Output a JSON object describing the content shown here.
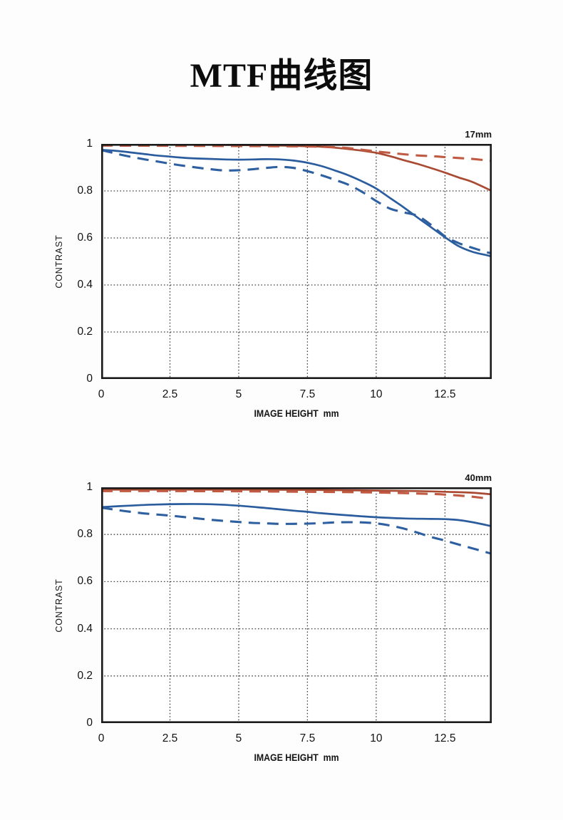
{
  "page": {
    "title": "MTF曲线图"
  },
  "chart_data": [
    {
      "type": "line",
      "corner_label": "17mm",
      "xlabel": "IMAGE HEIGHT  mm",
      "ylabel": "CONTRAST",
      "xlim": [
        0,
        14.2
      ],
      "ylim": [
        0,
        1
      ],
      "x_ticks": [
        0,
        2.5,
        5,
        7.5,
        10,
        12.5
      ],
      "x_tick_labels": [
        "0",
        "2.5",
        "5",
        "7.5",
        "10",
        "12.5"
      ],
      "y_ticks": [
        0,
        0.2,
        0.4,
        0.6,
        0.8,
        1
      ],
      "y_tick_labels": [
        "0",
        "0.2",
        "0.4",
        "0.6",
        "0.8",
        "1"
      ],
      "grid": "dotted",
      "legend": "none",
      "series": [
        {
          "name": "red-solid",
          "style": "solid",
          "color": "#a94a33",
          "points": [
            [
              0,
              0.998
            ],
            [
              1,
              0.998
            ],
            [
              2.5,
              0.997
            ],
            [
              4,
              0.996
            ],
            [
              5,
              0.995
            ],
            [
              6,
              0.994
            ],
            [
              7,
              0.992
            ],
            [
              7.5,
              0.99
            ],
            [
              8,
              0.988
            ],
            [
              8.5,
              0.984
            ],
            [
              9,
              0.978
            ],
            [
              9.5,
              0.971
            ],
            [
              10,
              0.962
            ],
            [
              10.5,
              0.948
            ],
            [
              11,
              0.931
            ],
            [
              11.5,
              0.915
            ],
            [
              12,
              0.897
            ],
            [
              12.5,
              0.878
            ],
            [
              13,
              0.857
            ],
            [
              13.5,
              0.838
            ],
            [
              14.2,
              0.8
            ]
          ]
        },
        {
          "name": "red-dashed",
          "style": "dashed",
          "color": "#c05a42",
          "points": [
            [
              0,
              0.993
            ],
            [
              2.5,
              0.992
            ],
            [
              5,
              0.991
            ],
            [
              7.5,
              0.989
            ],
            [
              8.5,
              0.986
            ],
            [
              9,
              0.982
            ],
            [
              9.5,
              0.975
            ],
            [
              10,
              0.968
            ],
            [
              10.5,
              0.962
            ],
            [
              11,
              0.956
            ],
            [
              11.5,
              0.951
            ],
            [
              12,
              0.948
            ],
            [
              12.5,
              0.944
            ],
            [
              13,
              0.94
            ],
            [
              13.5,
              0.936
            ],
            [
              14.2,
              0.928
            ]
          ]
        },
        {
          "name": "blue-solid",
          "style": "solid",
          "color": "#2b5d9e",
          "points": [
            [
              0,
              0.975
            ],
            [
              0.5,
              0.971
            ],
            [
              1,
              0.965
            ],
            [
              1.5,
              0.958
            ],
            [
              2,
              0.951
            ],
            [
              2.5,
              0.946
            ],
            [
              3,
              0.941
            ],
            [
              3.5,
              0.938
            ],
            [
              4,
              0.936
            ],
            [
              4.5,
              0.934
            ],
            [
              5,
              0.933
            ],
            [
              5.5,
              0.934
            ],
            [
              6,
              0.935
            ],
            [
              6.5,
              0.934
            ],
            [
              7,
              0.929
            ],
            [
              7.5,
              0.92
            ],
            [
              8,
              0.906
            ],
            [
              8.5,
              0.887
            ],
            [
              9,
              0.866
            ],
            [
              9.5,
              0.84
            ],
            [
              10,
              0.81
            ],
            [
              10.5,
              0.77
            ],
            [
              11,
              0.73
            ],
            [
              11.5,
              0.687
            ],
            [
              12,
              0.645
            ],
            [
              12.5,
              0.603
            ],
            [
              13,
              0.565
            ],
            [
              13.5,
              0.541
            ],
            [
              14,
              0.527
            ],
            [
              14.2,
              0.521
            ]
          ]
        },
        {
          "name": "blue-dashed",
          "style": "dashed",
          "color": "#2e60a1",
          "points": [
            [
              0,
              0.974
            ],
            [
              0.5,
              0.96
            ],
            [
              1,
              0.947
            ],
            [
              1.5,
              0.936
            ],
            [
              2,
              0.926
            ],
            [
              2.5,
              0.916
            ],
            [
              3,
              0.907
            ],
            [
              3.5,
              0.899
            ],
            [
              4,
              0.892
            ],
            [
              4.5,
              0.887
            ],
            [
              5,
              0.888
            ],
            [
              5.5,
              0.892
            ],
            [
              6,
              0.898
            ],
            [
              6.5,
              0.902
            ],
            [
              7,
              0.898
            ],
            [
              7.5,
              0.884
            ],
            [
              8,
              0.867
            ],
            [
              8.5,
              0.847
            ],
            [
              9,
              0.826
            ],
            [
              9.5,
              0.795
            ],
            [
              10,
              0.757
            ],
            [
              10.5,
              0.725
            ],
            [
              11,
              0.709
            ],
            [
              11.5,
              0.694
            ],
            [
              12,
              0.655
            ],
            [
              12.5,
              0.607
            ],
            [
              13,
              0.578
            ],
            [
              13.5,
              0.558
            ],
            [
              14,
              0.54
            ],
            [
              14.2,
              0.535
            ]
          ]
        }
      ]
    },
    {
      "type": "line",
      "corner_label": "40mm",
      "xlabel": "IMAGE HEIGHT  mm",
      "ylabel": "CONTRAST",
      "xlim": [
        0,
        14.2
      ],
      "ylim": [
        0,
        1
      ],
      "x_ticks": [
        0,
        2.5,
        5,
        7.5,
        10,
        12.5
      ],
      "x_tick_labels": [
        "0",
        "2.5",
        "5",
        "7.5",
        "10",
        "12.5"
      ],
      "y_ticks": [
        0,
        0.2,
        0.4,
        0.6,
        0.8,
        1
      ],
      "y_tick_labels": [
        "0",
        "0.2",
        "0.4",
        "0.6",
        "0.8",
        "1"
      ],
      "grid": "dotted",
      "legend": "none",
      "series": [
        {
          "name": "red-solid",
          "style": "solid",
          "color": "#a94a33",
          "points": [
            [
              0,
              0.99
            ],
            [
              2.5,
              0.99
            ],
            [
              5,
              0.99
            ],
            [
              7.5,
              0.989
            ],
            [
              10,
              0.986
            ],
            [
              11.5,
              0.984
            ],
            [
              12.5,
              0.981
            ],
            [
              13.5,
              0.977
            ],
            [
              14.2,
              0.97
            ]
          ]
        },
        {
          "name": "red-dashed",
          "style": "dashed",
          "color": "#c05a42",
          "points": [
            [
              0,
              0.984
            ],
            [
              2.5,
              0.984
            ],
            [
              5,
              0.983
            ],
            [
              7.5,
              0.981
            ],
            [
              10,
              0.978
            ],
            [
              12,
              0.972
            ],
            [
              12.5,
              0.969
            ],
            [
              13,
              0.965
            ],
            [
              13.5,
              0.96
            ],
            [
              14.2,
              0.95
            ]
          ]
        },
        {
          "name": "blue-solid",
          "style": "solid",
          "color": "#2b5d9e",
          "points": [
            [
              0,
              0.916
            ],
            [
              1,
              0.922
            ],
            [
              2,
              0.927
            ],
            [
              3,
              0.929
            ],
            [
              4,
              0.928
            ],
            [
              5,
              0.922
            ],
            [
              6,
              0.912
            ],
            [
              7,
              0.901
            ],
            [
              7.5,
              0.896
            ],
            [
              8,
              0.89
            ],
            [
              9,
              0.881
            ],
            [
              10,
              0.873
            ],
            [
              11,
              0.868
            ],
            [
              12,
              0.866
            ],
            [
              12.5,
              0.865
            ],
            [
              13,
              0.861
            ],
            [
              13.5,
              0.852
            ],
            [
              14.2,
              0.835
            ]
          ]
        },
        {
          "name": "blue-dashed",
          "style": "dashed",
          "color": "#2e60a1",
          "points": [
            [
              0,
              0.914
            ],
            [
              0.5,
              0.905
            ],
            [
              1,
              0.897
            ],
            [
              1.5,
              0.89
            ],
            [
              2,
              0.885
            ],
            [
              2.5,
              0.88
            ],
            [
              3,
              0.874
            ],
            [
              3.5,
              0.868
            ],
            [
              4,
              0.862
            ],
            [
              4.5,
              0.857
            ],
            [
              5,
              0.853
            ],
            [
              5.5,
              0.849
            ],
            [
              6,
              0.847
            ],
            [
              6.5,
              0.845
            ],
            [
              7,
              0.845
            ],
            [
              7.5,
              0.846
            ],
            [
              8,
              0.848
            ],
            [
              8.5,
              0.851
            ],
            [
              9,
              0.852
            ],
            [
              9.5,
              0.851
            ],
            [
              10,
              0.847
            ],
            [
              10.5,
              0.838
            ],
            [
              11,
              0.825
            ],
            [
              11.5,
              0.808
            ],
            [
              12,
              0.789
            ],
            [
              12.5,
              0.774
            ],
            [
              13,
              0.757
            ],
            [
              13.5,
              0.741
            ],
            [
              14.2,
              0.718
            ]
          ]
        }
      ]
    }
  ]
}
